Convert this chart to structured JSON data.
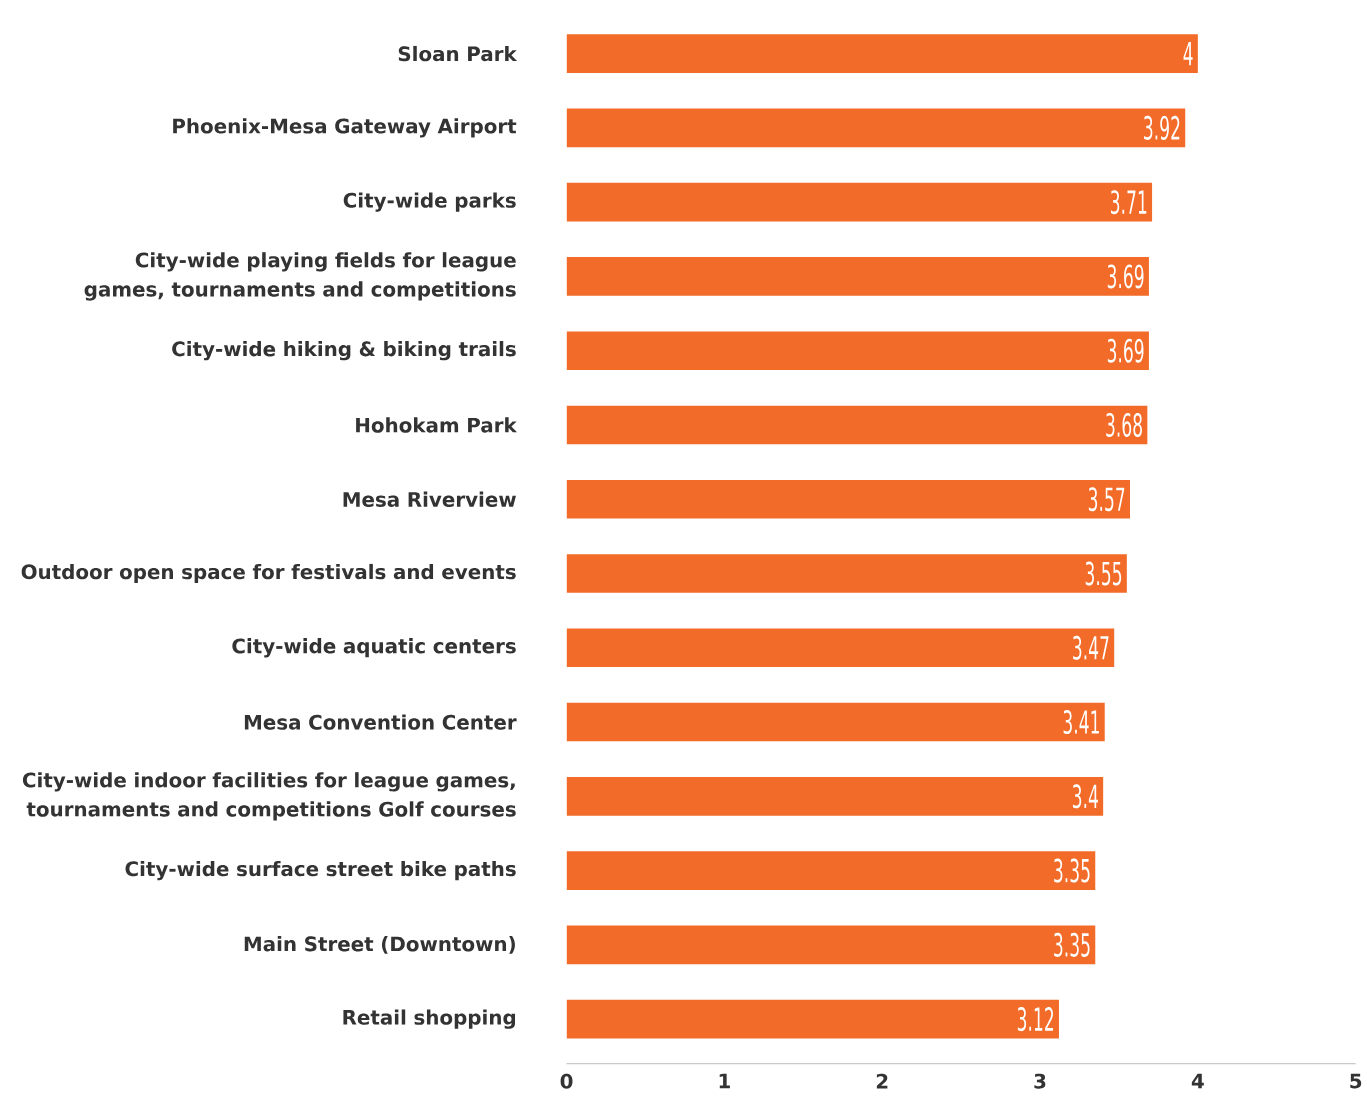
{
  "chart_data": {
    "type": "bar",
    "orientation": "horizontal",
    "categories": [
      "Sloan Park",
      "Phoenix-Mesa Gateway Airport",
      "City-wide parks",
      "City-wide playing fields for league games, tournaments and competitions",
      "City-wide hiking & biking trails",
      "Hohokam Park",
      "Mesa Riverview",
      "Outdoor open space for festivals and events",
      "City-wide aquatic centers",
      "Mesa Convention Center",
      "City-wide indoor facilities for league games, tournaments and competitions Golf courses",
      "City-wide surface street bike paths",
      "Main Street (Downtown)",
      "Retail shopping"
    ],
    "values": [
      4,
      3.92,
      3.71,
      3.69,
      3.69,
      3.68,
      3.57,
      3.55,
      3.47,
      3.41,
      3.4,
      3.35,
      3.35,
      3.12
    ],
    "color": "#f26b28",
    "data_labels": true,
    "xlim": [
      0,
      5
    ],
    "xticks": [
      0,
      1,
      2,
      3,
      4,
      5
    ]
  }
}
